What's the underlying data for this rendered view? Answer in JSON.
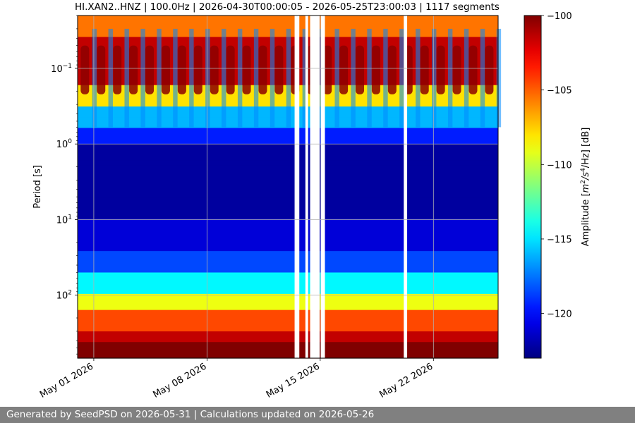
{
  "chart_data": {
    "type": "heatmap",
    "title": "HI.XAN2..HNZ | 100.0Hz | 2026-04-30T00:00:05 - 2026-05-25T23:00:03 | 1117 segments",
    "ylabel": "Period [s]",
    "xlabel": "",
    "y_scale": "log",
    "y_inverted": true,
    "ylim": [
      0.02,
      680
    ],
    "xlim": [
      "2026-04-30",
      "2026-05-26"
    ],
    "x_ticks": [
      {
        "date": "2026-05-01",
        "label": "May 01 2026"
      },
      {
        "date": "2026-05-08",
        "label": "May 08 2026"
      },
      {
        "date": "2026-05-15",
        "label": "May 15 2026"
      },
      {
        "date": "2026-05-22",
        "label": "May 22 2026"
      }
    ],
    "y_ticks": [
      {
        "value": 0.1,
        "base": "10",
        "exp": "−1"
      },
      {
        "value": 1,
        "base": "10",
        "exp": "0"
      },
      {
        "value": 10,
        "base": "10",
        "exp": "1"
      },
      {
        "value": 100,
        "base": "10",
        "exp": "2"
      }
    ],
    "grid": true,
    "data_gaps": [
      {
        "start": "2026-05-13T10:00",
        "end": "2026-05-13T17:00"
      },
      {
        "start": "2026-05-14T02:00",
        "end": "2026-05-14T06:00"
      },
      {
        "start": "2026-05-14T09:00",
        "end": "2026-05-14T23:00"
      },
      {
        "start": "2026-05-15T01:00",
        "end": "2026-05-15T07:00"
      },
      {
        "start": "2026-05-20T04:00",
        "end": "2026-05-20T09:00"
      }
    ],
    "colorbar": {
      "label_prefix": "Amplitude [",
      "label_unit": "m",
      "label_sup1": "2",
      "label_mid": "/s",
      "label_sup2": "4",
      "label_end": "/Hz] [dB]",
      "min": -123,
      "max": -100,
      "colormap": "jet",
      "ticks": [
        -100,
        -105,
        -110,
        -115,
        -120
      ],
      "tick_labels": [
        "−100",
        "−105",
        "−110",
        "−115",
        "−120"
      ]
    }
  },
  "footer": {
    "text": "Generated by SeedPSD on 2026-05-31 | Calculations updated on 2026-05-26",
    "background": "#808080"
  }
}
